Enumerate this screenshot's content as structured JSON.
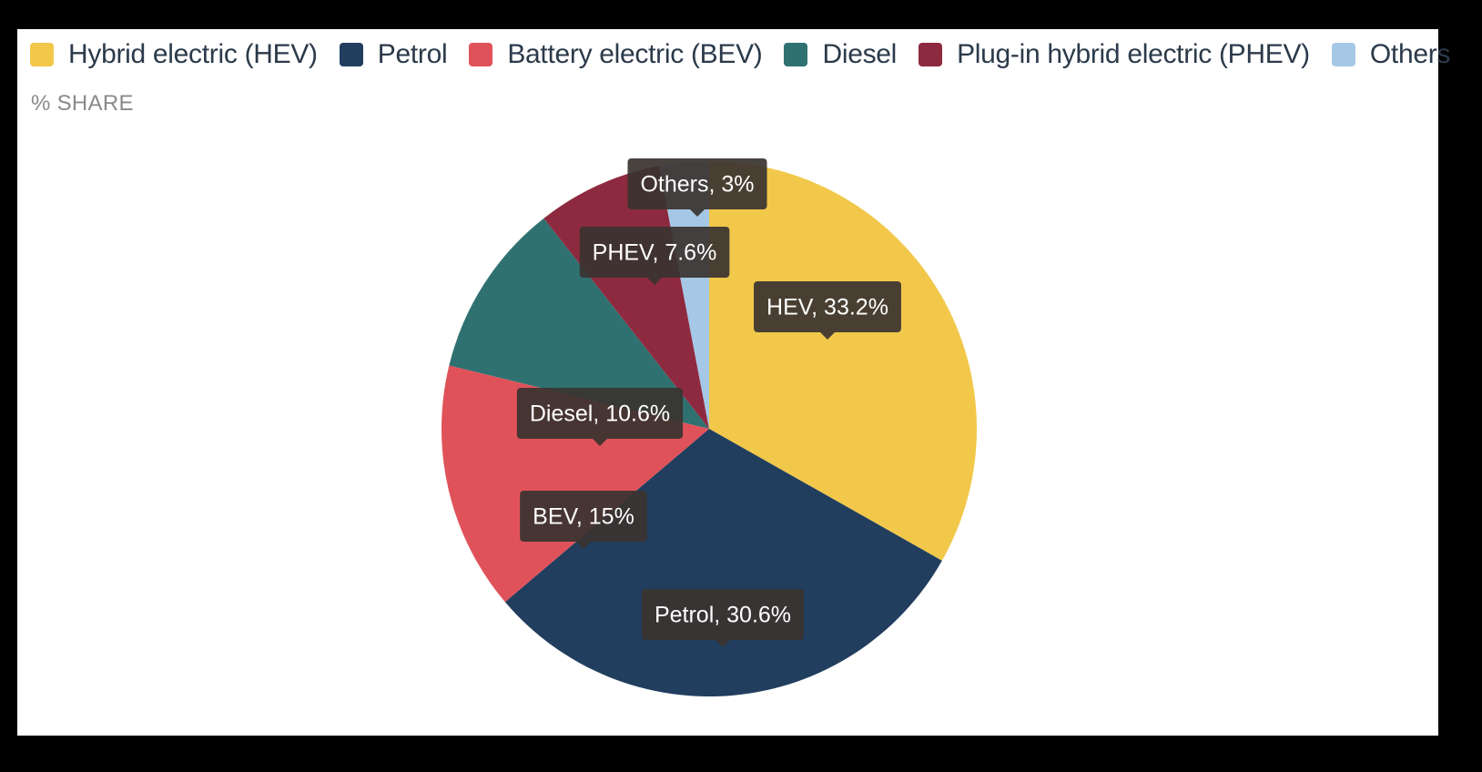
{
  "legend": [
    {
      "label": "Hybrid electric (HEV)",
      "color": "#f2c84b"
    },
    {
      "label": "Petrol",
      "color": "#213e5e"
    },
    {
      "label": "Battery electric (BEV)",
      "color": "#e0525a"
    },
    {
      "label": "Diesel",
      "color": "#2f7170"
    },
    {
      "label": "Plug-in hybrid electric (PHEV)",
      "color": "#8e2a3f"
    },
    {
      "label": "Others",
      "color": "#a5c8e6"
    }
  ],
  "unit_label": "% SHARE",
  "chart_data": {
    "type": "pie",
    "ylabel": "% SHARE",
    "legend_position": "top",
    "slices": [
      {
        "name": "Hybrid electric (HEV)",
        "short": "HEV",
        "value": 33.2,
        "label": "HEV, 33.2%",
        "color": "#f2c84b"
      },
      {
        "name": "Petrol",
        "short": "Petrol",
        "value": 30.6,
        "label": "Petrol, 30.6%",
        "color": "#213e5e"
      },
      {
        "name": "Battery electric (BEV)",
        "short": "BEV",
        "value": 15,
        "label": "BEV, 15%",
        "color": "#e0525a"
      },
      {
        "name": "Diesel",
        "short": "Diesel",
        "value": 10.6,
        "label": "Diesel, 10.6%",
        "color": "#2f7170"
      },
      {
        "name": "Plug-in hybrid electric (PHEV)",
        "short": "PHEV",
        "value": 7.6,
        "label": "PHEV, 7.6%",
        "color": "#8e2a3f"
      },
      {
        "name": "Others",
        "short": "Others",
        "value": 3,
        "label": "Others, 3%",
        "color": "#a5c8e6"
      }
    ]
  }
}
